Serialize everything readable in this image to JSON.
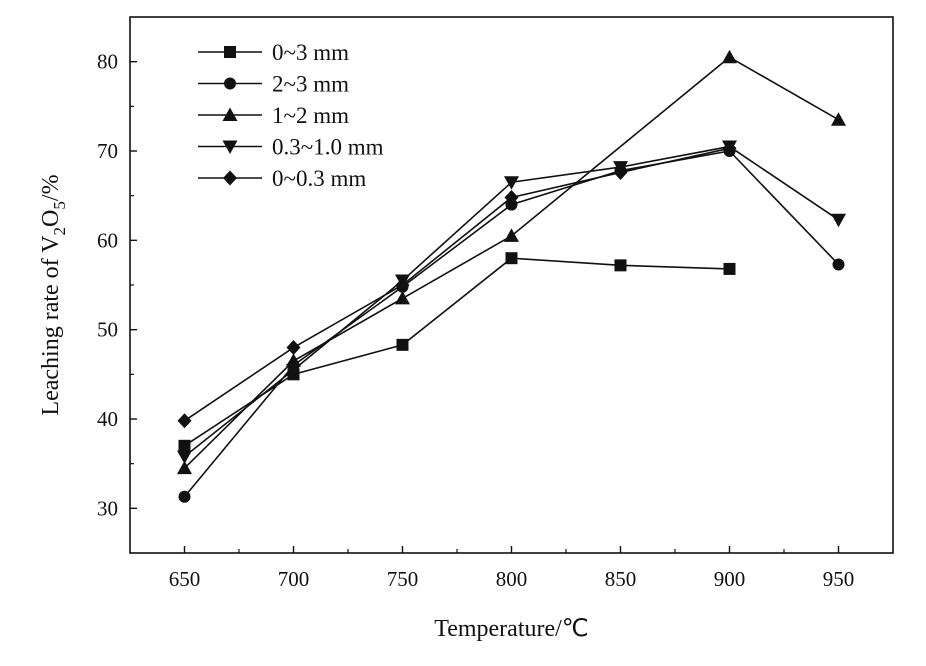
{
  "chart_data": {
    "type": "line",
    "title": "",
    "xlabel": "Temperature/℃",
    "ylabel": {
      "prefix": "Leaching rate of V",
      "sub1": "2",
      "mid": "O",
      "sub2": "5",
      "suffix": "/%"
    },
    "xlim": [
      625,
      975
    ],
    "ylim": [
      25,
      85
    ],
    "xticks": [
      650,
      700,
      750,
      800,
      850,
      900,
      950
    ],
    "yticks": [
      30,
      40,
      50,
      60,
      70,
      80
    ],
    "grid": false,
    "legend_position": "top-left",
    "series": [
      {
        "name": "0~3 mm",
        "marker": "square",
        "x": [
          650,
          700,
          750,
          800,
          850,
          900
        ],
        "y": [
          37.0,
          45.0,
          48.3,
          58.0,
          57.2,
          56.8
        ]
      },
      {
        "name": "2~3 mm",
        "marker": "circle",
        "x": [
          650,
          700,
          750,
          800,
          850,
          900,
          950
        ],
        "y": [
          31.3,
          46.0,
          54.8,
          64.0,
          67.8,
          70.0,
          57.3
        ]
      },
      {
        "name": "1~2 mm",
        "marker": "triangle-up",
        "x": [
          650,
          700,
          750,
          800,
          900,
          950
        ],
        "y": [
          34.5,
          46.5,
          53.5,
          60.5,
          80.5,
          73.5
        ]
      },
      {
        "name": "0.3~1.0 mm",
        "marker": "triangle-down",
        "x": [
          650,
          700,
          750,
          800,
          850,
          900,
          950
        ],
        "y": [
          35.8,
          45.5,
          55.5,
          66.5,
          68.2,
          70.5,
          62.3
        ]
      },
      {
        "name": "0~0.3 mm",
        "marker": "diamond",
        "x": [
          650,
          700,
          750,
          800,
          850,
          900
        ],
        "y": [
          39.8,
          48.0,
          55.0,
          64.8,
          67.6,
          70.3
        ]
      }
    ],
    "colors": {
      "line": "#111111",
      "axis": "#111111",
      "background": "#ffffff"
    }
  }
}
